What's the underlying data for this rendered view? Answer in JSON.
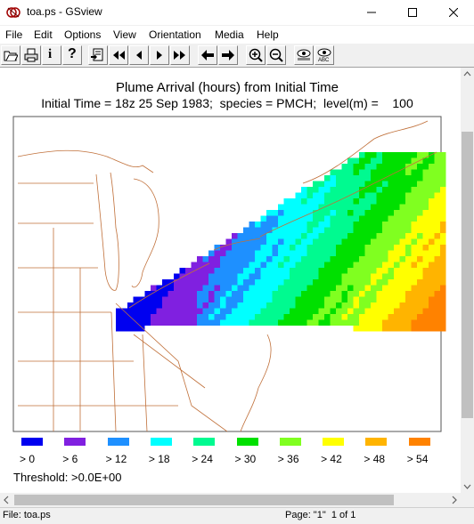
{
  "window": {
    "title": "toa.ps - GSview",
    "buttons": [
      "minimize",
      "maximize",
      "close"
    ]
  },
  "menu": [
    "File",
    "Edit",
    "Options",
    "View",
    "Orientation",
    "Media",
    "Help"
  ],
  "toolbar": {
    "buttons": [
      "open-icon",
      "print-icon",
      "info-icon",
      "help-icon",
      "goto-page-icon",
      "first-page-icon",
      "prev-page-icon",
      "next-page-icon",
      "last-page-icon",
      "back-icon",
      "forward-icon",
      "zoom-in-icon",
      "zoom-out-icon",
      "display-settings-icon",
      "text-extract-icon"
    ],
    "labels": {
      "info": "i",
      "help": "?"
    }
  },
  "plot": {
    "title_line1": "Plume Arrival (hours) from Initial Time",
    "title_line2": "Initial Time = 18z 25 Sep 1983;  species = PMCH;  level(m) =    100",
    "legend": [
      {
        "label": "> 0",
        "color": "#0000f0"
      },
      {
        "label": "> 6",
        "color": "#8020e0"
      },
      {
        "label": "> 12",
        "color": "#1e90ff"
      },
      {
        "label": "> 18",
        "color": "#00ffff"
      },
      {
        "label": "> 24",
        "color": "#00fa90"
      },
      {
        "label": "> 30",
        "color": "#00e000"
      },
      {
        "label": "> 36",
        "color": "#80ff20"
      },
      {
        "label": "> 42",
        "color": "#ffff00"
      },
      {
        "label": "> 48",
        "color": "#ffb400"
      },
      {
        "label": "> 54",
        "color": "#ff8200"
      }
    ],
    "threshold": "Threshold: >0.0E+00",
    "map_line_color": "#c0703a"
  },
  "status": {
    "file": "File: toa.ps",
    "page": "Page: \"1\"  1 of 1"
  }
}
